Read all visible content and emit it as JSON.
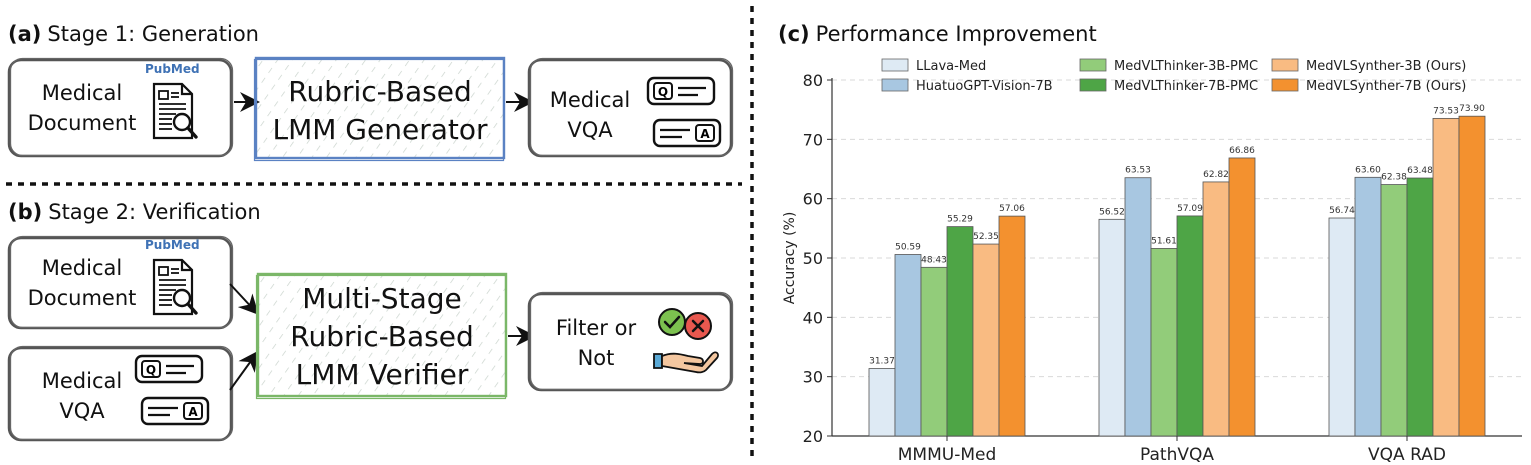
{
  "stage1": {
    "tag": "(a)",
    "title": "Stage 1: Generation",
    "doc_label_1": "Medical",
    "doc_label_2": "Document",
    "generator_1": "Rubric-Based",
    "generator_2": "LMM Generator",
    "vqa_label_1": "Medical",
    "vqa_label_2": "VQA"
  },
  "stage2": {
    "tag": "(b)",
    "title": "Stage 2: Verification",
    "doc_label_1": "Medical",
    "doc_label_2": "Document",
    "vqa_label_1": "Medical",
    "vqa_label_2": "VQA",
    "verifier_1": "Multi-Stage",
    "verifier_2": "Rubric-Based",
    "verifier_3": "LMM Verifier",
    "filter_1": "Filter or",
    "filter_2": "Not"
  },
  "logos": {
    "pubmed": "PubMed"
  },
  "icons": {
    "q": "Q",
    "a": "A"
  },
  "panel_c": {
    "tag": "(c)",
    "title": "Performance Improvement"
  },
  "chart_data": {
    "type": "bar",
    "ylabel": "Accuracy (%)",
    "ylim": [
      20,
      80
    ],
    "yticks": [
      20,
      30,
      40,
      50,
      60,
      70,
      80
    ],
    "grid": true,
    "legend_position": "top",
    "categories": [
      "MMMU-Med",
      "PathVQA",
      "VQA RAD"
    ],
    "series": [
      {
        "name": "LLava-Med",
        "color": "#deeaf4",
        "values": [
          31.37,
          56.52,
          56.74
        ]
      },
      {
        "name": "HuatuoGPT-Vision-7B",
        "color": "#a8c7e1",
        "values": [
          50.59,
          63.53,
          63.6
        ]
      },
      {
        "name": "MedVLThinker-3B-PMC",
        "color": "#92cc7a",
        "values": [
          48.43,
          51.61,
          62.38
        ]
      },
      {
        "name": "MedVLThinker-7B-PMC",
        "color": "#4ea546",
        "values": [
          55.29,
          57.09,
          63.48
        ]
      },
      {
        "name": "MedVLSynther-3B (Ours)",
        "color": "#f9bb82",
        "values": [
          52.35,
          62.82,
          73.53
        ]
      },
      {
        "name": "MedVLSynther-7B (Ours)",
        "color": "#f3912f",
        "values": [
          57.06,
          66.86,
          73.9
        ]
      }
    ]
  }
}
